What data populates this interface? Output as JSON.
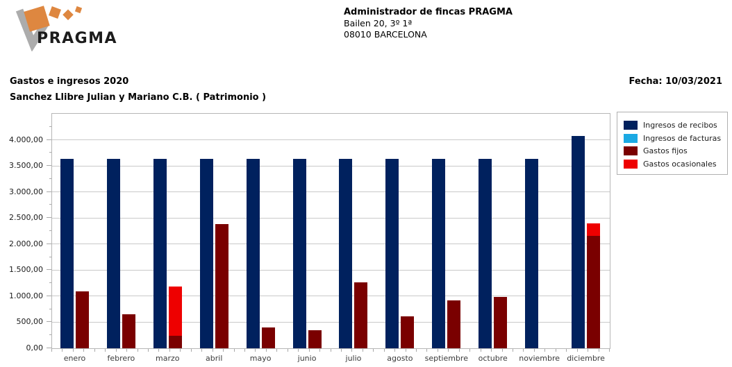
{
  "header": {
    "logo": {
      "brand": "PRAGMA",
      "orange": "#DE8740",
      "gray": "#ACACAC",
      "text_color": "#1c1c1c"
    },
    "company": "Administrador de fincas PRAGMA",
    "address": "Bailen 20, 3º 1ª",
    "city": "08010 BARCELONA"
  },
  "report": {
    "title": "Gastos e ingresos 2020",
    "subtitle": "Sanchez Llibre Julian y Mariano C.B. ( Patrimonio )",
    "date": "Fecha: 10/03/2021"
  },
  "chart_data": {
    "type": "bar",
    "title": "Gastos e ingresos 2020",
    "categories": [
      "enero",
      "febrero",
      "marzo",
      "abril",
      "mayo",
      "junio",
      "julio",
      "agosto",
      "septiembre",
      "octubre",
      "noviembre",
      "diciembre"
    ],
    "series": [
      {
        "name": "Ingresos de recibos",
        "color": "#00215E",
        "column": "ingresos",
        "values": [
          3630,
          3630,
          3630,
          3630,
          3630,
          3630,
          3630,
          3630,
          3630,
          3630,
          3630,
          4080
        ]
      },
      {
        "name": "Ingresos de facturas",
        "color": "#1BA9E3",
        "column": "ingresos",
        "values": [
          0,
          0,
          0,
          0,
          0,
          0,
          0,
          0,
          0,
          0,
          0,
          0
        ]
      },
      {
        "name": "Gastos fijos",
        "color": "#7A0000",
        "column": "gastos",
        "values": [
          1090,
          650,
          240,
          2380,
          400,
          340,
          1270,
          610,
          920,
          980,
          0,
          2160
        ]
      },
      {
        "name": "Gastos ocasionales",
        "color": "#EE0000",
        "column": "gastos",
        "values": [
          0,
          0,
          950,
          0,
          0,
          0,
          0,
          0,
          0,
          0,
          0,
          240
        ]
      }
    ],
    "columns_stacked": true,
    "ylim": [
      0,
      4500
    ],
    "y_tick_labels": [
      "0,00",
      "500,00",
      "1.000,00",
      "1.500,00",
      "2.000,00",
      "2.500,00",
      "3.000,00",
      "3.500,00",
      "4.000,00"
    ],
    "grid": true,
    "legend_position": "top-right-outside",
    "xlabel": "",
    "ylabel": ""
  }
}
